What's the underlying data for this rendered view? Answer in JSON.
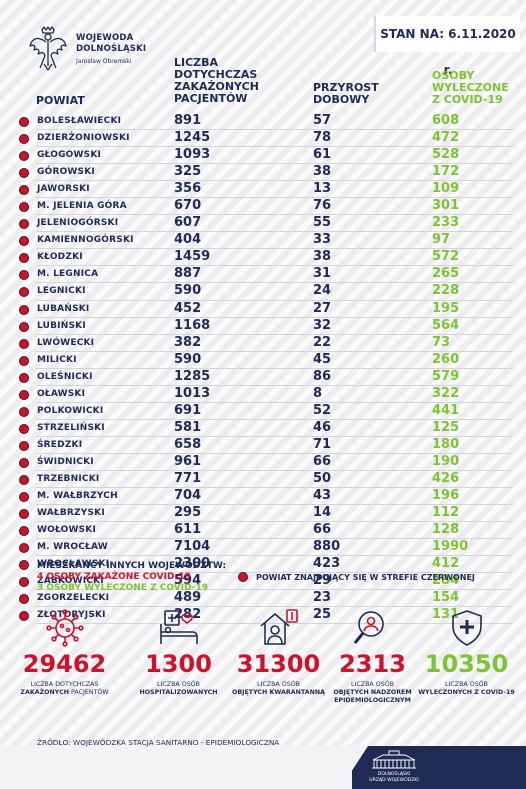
{
  "header": {
    "org_line1": "WOJEWODA",
    "org_line2": "DOLNOŚLĄSKI",
    "org_line3": "Jarosław Obremski",
    "date": "STAN NA: 6.11.2020 r."
  },
  "columns": {
    "powiat": "POWIAT",
    "cases": [
      "LICZBA",
      "DOTYCHCZAS",
      "ZAKAŻONYCH",
      "PACJENTÓW"
    ],
    "growth": [
      "PRZYROST",
      "DOBOWY"
    ],
    "recovered": [
      "OSOBY",
      "WYLECZONE",
      "Z COVID-19"
    ]
  },
  "rows": [
    {
      "name": "BOLESŁAWIECKI",
      "cases": "891",
      "growth": "57",
      "recovered": "608"
    },
    {
      "name": "DZIERŻONIOWSKI",
      "cases": "1245",
      "growth": "78",
      "recovered": "472"
    },
    {
      "name": "GŁOGOWSKI",
      "cases": "1093",
      "growth": "61",
      "recovered": "528"
    },
    {
      "name": "GÓROWSKI",
      "cases": "325",
      "growth": "38",
      "recovered": "172"
    },
    {
      "name": "JAWORSKI",
      "cases": "356",
      "growth": "13",
      "recovered": "109"
    },
    {
      "name": "M. JELENIA GÓRA",
      "cases": "670",
      "growth": "76",
      "recovered": "301"
    },
    {
      "name": "JELENIOGÓRSKI",
      "cases": "607",
      "growth": "55",
      "recovered": "233"
    },
    {
      "name": "KAMIENNOGÓRSKI",
      "cases": "404",
      "growth": "33",
      "recovered": "97"
    },
    {
      "name": "KŁODZKI",
      "cases": "1459",
      "growth": "38",
      "recovered": "572"
    },
    {
      "name": "M. LEGNICA",
      "cases": "887",
      "growth": "31",
      "recovered": "265"
    },
    {
      "name": "LEGNICKI",
      "cases": "590",
      "growth": "24",
      "recovered": "228"
    },
    {
      "name": "LUBAŃSKI",
      "cases": "452",
      "growth": "27",
      "recovered": "195"
    },
    {
      "name": "LUBIŃSKI",
      "cases": "1168",
      "growth": "32",
      "recovered": "564"
    },
    {
      "name": "LWÓWECKI",
      "cases": "382",
      "growth": "22",
      "recovered": "73"
    },
    {
      "name": "MILICKI",
      "cases": "590",
      "growth": "45",
      "recovered": "260"
    },
    {
      "name": "OLEŚNICKI",
      "cases": "1285",
      "growth": "86",
      "recovered": "579"
    },
    {
      "name": "OŁAWSKI",
      "cases": "1013",
      "growth": "8",
      "recovered": "322"
    },
    {
      "name": "POLKOWICKI",
      "cases": "691",
      "growth": "52",
      "recovered": "441"
    },
    {
      "name": "STRZELIŃSKI",
      "cases": "581",
      "growth": "46",
      "recovered": "125"
    },
    {
      "name": "ŚREDZKI",
      "cases": "658",
      "growth": "71",
      "recovered": "180"
    },
    {
      "name": "ŚWIDNICKI",
      "cases": "961",
      "growth": "66",
      "recovered": "190"
    },
    {
      "name": "TRZEBNICKI",
      "cases": "771",
      "growth": "50",
      "recovered": "426"
    },
    {
      "name": "M. WAŁBRZYCH",
      "cases": "704",
      "growth": "43",
      "recovered": "196"
    },
    {
      "name": "WAŁBRZYSKI",
      "cases": "295",
      "growth": "14",
      "recovered": "112"
    },
    {
      "name": "WOŁOWSKI",
      "cases": "611",
      "growth": "66",
      "recovered": "128"
    },
    {
      "name": "M. WROCŁAW",
      "cases": "7104",
      "growth": "880",
      "recovered": "1990"
    },
    {
      "name": "WROCŁAWSKI",
      "cases": "2300",
      "growth": "423",
      "recovered": "412"
    },
    {
      "name": "ZĄBKOWICKI",
      "cases": "594",
      "growth": "29",
      "recovered": "284"
    },
    {
      "name": "ZGORZELECKI",
      "cases": "489",
      "growth": "23",
      "recovered": "154"
    },
    {
      "name": "ZŁOTORYJSKI",
      "cases": "282",
      "growth": "25",
      "recovered": "131"
    }
  ],
  "other_voivodeships": {
    "title": "MIESZKAŃCY INNYCH WOJEWÓDZTW:",
    "infected": "4 OSOBY ZAKAŻONE COVID-19",
    "recovered": "3 OSOBY WYLECZONE Z COVID-19"
  },
  "legend": {
    "text": "POWIAT ZNAJDUJĄCY SIĘ W STREFIE CZERWONEJ",
    "dot_color": "#d0112b"
  },
  "stats": [
    {
      "icon": "virus-icon",
      "value": "29462",
      "label_line1": "LICZBA DOTYCHCZAS",
      "label_bold": "ZAKAŻONYCH",
      "label_rest": " PACJENTÓW"
    },
    {
      "icon": "hospital-bed-icon",
      "value": "1300",
      "label_line1": "LICZBA OSÓB",
      "label_bold": "HOSPITALIZOWANYCH",
      "label_rest": ""
    },
    {
      "icon": "quarantine-house-icon",
      "value": "31300",
      "label_line1": "LICZBA OSÓB",
      "label_bold": "OBJĘTYCH KWARANTANNĄ",
      "label_rest": ""
    },
    {
      "icon": "magnifier-person-icon",
      "value": "2313",
      "label_line1": "LICZBA OSÓB",
      "label_bold": "OBJĘTYCH NADZOREM EPIDEMIOLOGICZNYM",
      "label_rest": ""
    },
    {
      "icon": "shield-cross-icon",
      "value": "10350",
      "label_line1": "LICZBA OSÓB",
      "label_bold": "WYLECZONYCH Z COVID-19",
      "label_rest": ""
    }
  ],
  "source": "ŹRÓDŁO: WOJEWÓDZKA STACJA SANITARNO - EPIDEMIOLOGICZNA",
  "footer": {
    "line1": "DOLNOŚLĄSKI",
    "line2": "URZĄD WOJEWÓDZKI"
  },
  "colors": {
    "navy": "#1f2b55",
    "red": "#d0112b",
    "green": "#7dc432"
  }
}
